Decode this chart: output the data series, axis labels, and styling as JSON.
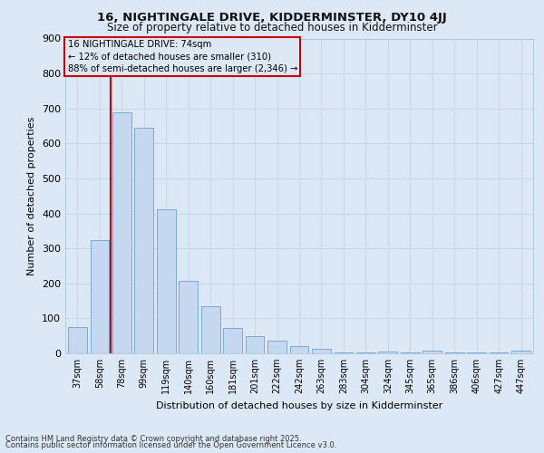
{
  "title1": "16, NIGHTINGALE DRIVE, KIDDERMINSTER, DY10 4JJ",
  "title2": "Size of property relative to detached houses in Kidderminster",
  "xlabel": "Distribution of detached houses by size in Kidderminster",
  "ylabel": "Number of detached properties",
  "categories": [
    "37sqm",
    "58sqm",
    "78sqm",
    "99sqm",
    "119sqm",
    "140sqm",
    "160sqm",
    "181sqm",
    "201sqm",
    "222sqm",
    "242sqm",
    "263sqm",
    "283sqm",
    "304sqm",
    "324sqm",
    "345sqm",
    "365sqm",
    "386sqm",
    "406sqm",
    "427sqm",
    "447sqm"
  ],
  "values": [
    75,
    325,
    690,
    645,
    413,
    208,
    135,
    72,
    48,
    35,
    22,
    12,
    2,
    2,
    5,
    2,
    8,
    2,
    2,
    2,
    7
  ],
  "bar_color": "#c5d8f0",
  "bar_edge_color": "#7aaad4",
  "background_color": "#dce8f5",
  "grid_color": "#c8d8e8",
  "vline_color": "#cc0000",
  "vline_index": 2,
  "annotation_text": "16 NIGHTINGALE DRIVE: 74sqm\n← 12% of detached houses are smaller (310)\n88% of semi-detached houses are larger (2,346) →",
  "annotation_box_color": "#cc0000",
  "ylim": [
    0,
    900
  ],
  "yticks": [
    0,
    100,
    200,
    300,
    400,
    500,
    600,
    700,
    800,
    900
  ],
  "footer1": "Contains HM Land Registry data © Crown copyright and database right 2025.",
  "footer2": "Contains public sector information licensed under the Open Government Licence v3.0."
}
